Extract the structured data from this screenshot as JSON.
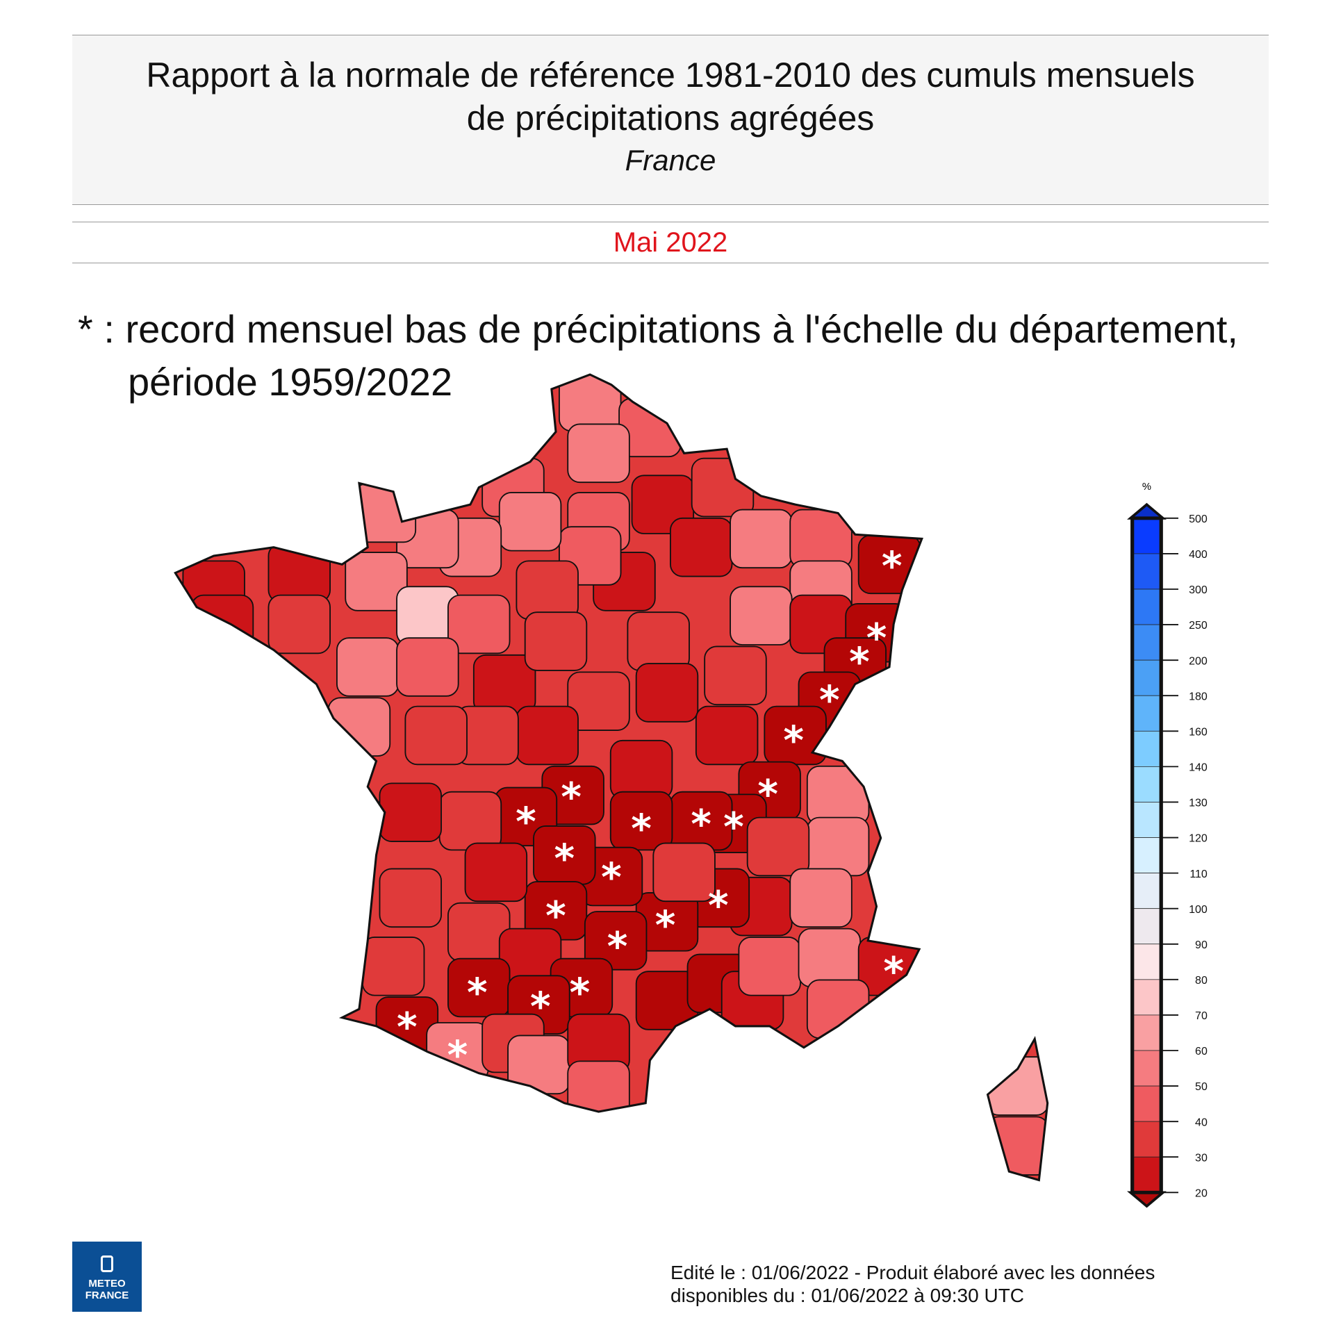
{
  "header": {
    "title_line1": "Rapport à la normale de référence 1981-2010 des cumuls mensuels",
    "title_line2": "de précipitations agrégées",
    "region": "France"
  },
  "period": "Mai 2022",
  "note": {
    "line1": "* : record mensuel bas de précipitations à l'échelle du département,",
    "line2": "période 1959/2022"
  },
  "legend": {
    "unit": "%",
    "ticks": [
      "500",
      "400",
      "300",
      "250",
      "200",
      "180",
      "160",
      "140",
      "130",
      "120",
      "110",
      "100",
      "90",
      "80",
      "70",
      "60",
      "50",
      "40",
      "30",
      "20"
    ],
    "colors": [
      "#0a3cff",
      "#1e5af5",
      "#2d78f5",
      "#3c8cf5",
      "#4ba0f5",
      "#5fb4fa",
      "#7dccff",
      "#9bdcff",
      "#b9e6ff",
      "#d7f0ff",
      "#e6eef8",
      "#eee9ee",
      "#fce6e8",
      "#fcc6c8",
      "#f9a0a2",
      "#f57c80",
      "#ef5b60",
      "#e03a3a",
      "#cc1418"
    ],
    "top_arrow_color": "#0a2fc8",
    "bottom_arrow_color": "#b40a0a"
  },
  "map": {
    "class_colors": {
      "s": "#b40606",
      "c1": "#cc1418",
      "c2": "#e03a3a",
      "c4": "#ef5b60",
      "c5": "#f57c80",
      "c6": "#f9a0a2",
      "c7": "#fcc6c8"
    },
    "record_marker": "*",
    "record_count": 23
  },
  "logo": {
    "line1": "METEO",
    "line2": "FRANCE"
  },
  "footer": {
    "line1": "Edité le : 01/06/2022 - Produit élaboré avec les données",
    "line2": "disponibles du : 01/06/2022 à 09:30 UTC"
  }
}
